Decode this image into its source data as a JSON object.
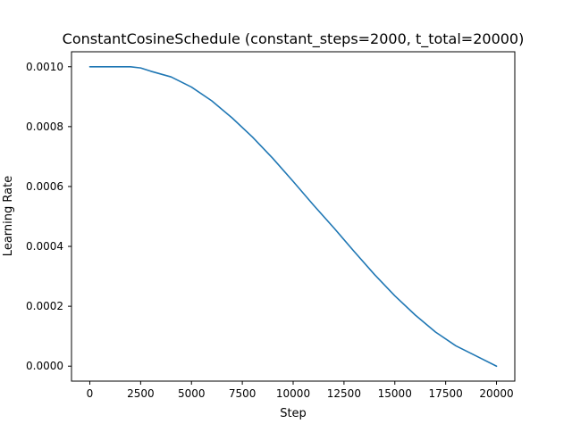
{
  "chart_data": {
    "type": "line",
    "title": "ConstantCosineSchedule (constant_steps=2000, t_total=20000)",
    "xlabel": "Step",
    "ylabel": "Learning Rate",
    "xlim": [
      -900,
      20900
    ],
    "ylim": [
      -5e-05,
      0.00105
    ],
    "xticks": [
      0,
      2500,
      5000,
      7500,
      10000,
      12500,
      15000,
      17500,
      20000
    ],
    "xtick_labels": [
      "0",
      "2500",
      "5000",
      "7500",
      "10000",
      "12500",
      "15000",
      "17500",
      "20000"
    ],
    "yticks": [
      0.0,
      0.0002,
      0.0004,
      0.0006,
      0.0008,
      0.001
    ],
    "ytick_labels": [
      "0.0000",
      "0.0002",
      "0.0004",
      "0.0006",
      "0.0008",
      "0.0010"
    ],
    "grid": false,
    "legend": "none",
    "series": [
      {
        "color": "#1f77b4",
        "x": [
          0,
          1000,
          2000,
          2500,
          3000,
          4000,
          5000,
          6000,
          7000,
          8000,
          9000,
          10000,
          11000,
          12000,
          13000,
          14000,
          15000,
          16000,
          17000,
          18000,
          19000,
          20000
        ],
        "y": [
          0.001,
          0.001,
          0.001,
          0.000996,
          0.000985,
          0.000966,
          0.000932,
          0.000886,
          0.000829,
          0.000765,
          0.000694,
          0.000617,
          0.000538,
          0.000462,
          0.000383,
          0.000306,
          0.000235,
          0.000171,
          0.000114,
          6.8e-05,
          3.4e-05,
          0.0
        ]
      }
    ]
  }
}
